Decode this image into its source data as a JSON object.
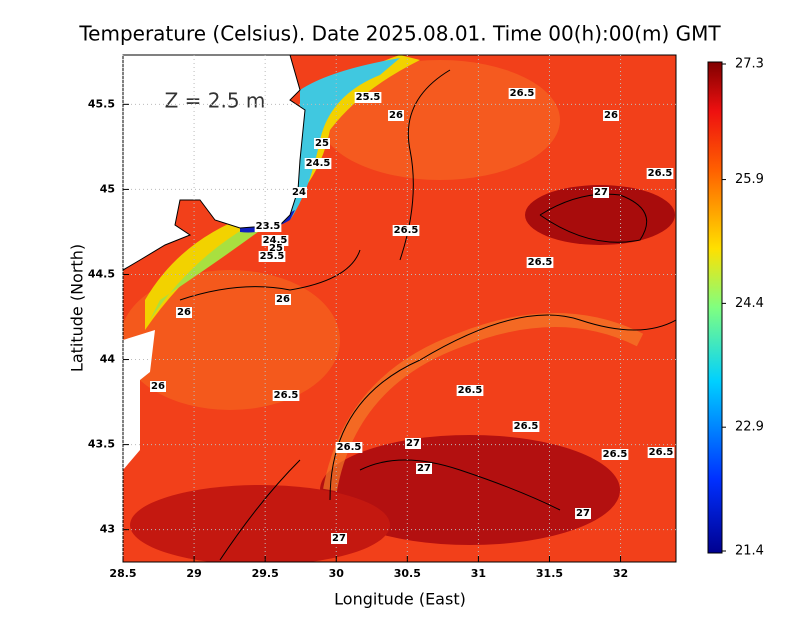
{
  "chart_data": {
    "type": "contour",
    "title": "Temperature (Celsius). Date 2025.08.01. Time 00(h):00(m)  GMT",
    "annotation": "Z  =  2.5  m",
    "x_label": "Longitude (East)",
    "y_label": "Latitude (North)",
    "xlim": [
      28.5,
      32.39
    ],
    "ylim": [
      42.81,
      45.79
    ],
    "xticks": [
      28.5,
      29,
      29.5,
      30,
      30.5,
      31,
      31.5,
      32
    ],
    "yticks": [
      43,
      43.5,
      44,
      44.5,
      45,
      45.5
    ],
    "grid": true,
    "colorbar_lim": [
      21.4,
      27.3
    ],
    "colorbar_ticks": [
      27.3,
      25.9,
      24.4,
      22.9,
      21.4
    ],
    "contour_labels": [
      25.5,
      26,
      26.5,
      26,
      25,
      24.5,
      26.5,
      27,
      24,
      23.5,
      24.5,
      25,
      25.5,
      26.5,
      26.5,
      26,
      26,
      26,
      26.5,
      26.5,
      26.5,
      26.5,
      27,
      26.5,
      26.5,
      27,
      27,
      27
    ]
  }
}
